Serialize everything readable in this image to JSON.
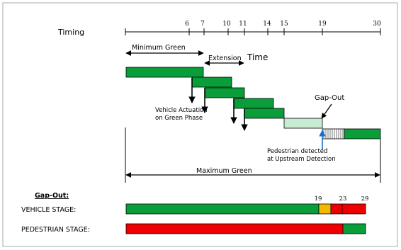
{
  "labels": {
    "timing": "Timing",
    "minimum_green": "Minimum Green",
    "extension": "Extension",
    "time": "Time",
    "gap_out": "Gap-Out",
    "vehicle_actuation_line1": "Vehicle Actuation",
    "vehicle_actuation_line2": "on Green Phase",
    "pedestrian_line1": "Pedestrian detected",
    "pedestrian_line2": "at Upstream Detection",
    "maximum_green": "Maximum Green",
    "gap_out_heading": "Gap-Out:",
    "vehicle_stage": "VEHICLE STAGE:",
    "pedestrian_stage": "PEDESTRIAN STAGE:"
  },
  "timeline_ticks": [
    "6",
    "7",
    "10",
    "11",
    "14",
    "15",
    "19",
    "30"
  ],
  "stage_ticks": [
    "19",
    "23",
    "29"
  ],
  "colors": {
    "green": "#0a9e3b",
    "light_green": "#c8ecd1",
    "yellow": "#f5b800",
    "red": "#ee0000",
    "pedestrian_arrow": "#1f6fc0",
    "border": "#000000"
  }
}
